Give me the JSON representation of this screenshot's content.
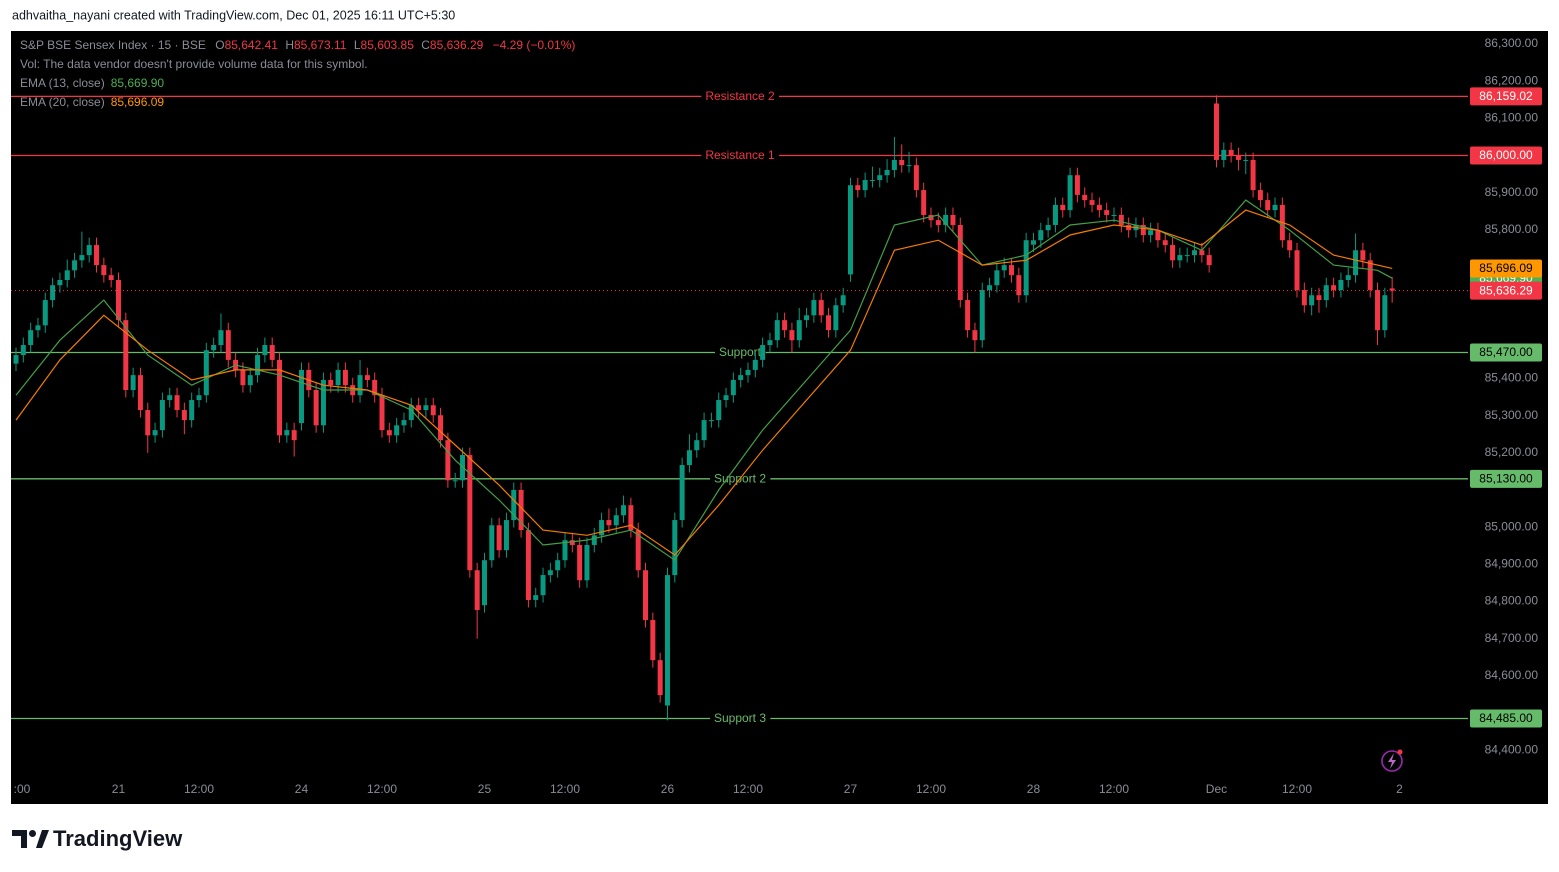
{
  "chart_data": {
    "type": "candlestick",
    "header": "adhvaitha_nayani created with TradingView.com, Dec 01, 2025 16:11 UTC+5:30",
    "symbol": "S&P BSE Sensex Index · 15 · BSE",
    "ohlc_letters": [
      "O",
      "H",
      "L",
      "C"
    ],
    "ohlc_labels": [
      "85,642.41",
      "85,673.11",
      "85,603.85",
      "85,636.29"
    ],
    "change": "−4.29 (−0.01%)",
    "volume_note": "Vol: The data vendor doesn't provide volume data for this symbol.",
    "brand": "TradingView",
    "up_color": "#089981",
    "down_color": "#f23645",
    "categories": [
      ":00",
      null,
      null,
      null,
      null,
      null,
      null,
      null,
      null,
      null,
      null,
      null,
      null,
      null,
      "21",
      null,
      null,
      null,
      null,
      null,
      null,
      null,
      null,
      null,
      null,
      "12:00",
      null,
      null,
      null,
      null,
      null,
      null,
      null,
      null,
      null,
      null,
      null,
      null,
      null,
      "24",
      null,
      null,
      null,
      null,
      null,
      null,
      null,
      null,
      null,
      null,
      "12:00",
      null,
      null,
      null,
      null,
      null,
      null,
      null,
      null,
      null,
      null,
      null,
      null,
      null,
      "25",
      null,
      null,
      null,
      null,
      null,
      null,
      null,
      null,
      null,
      null,
      "12:00",
      null,
      null,
      null,
      null,
      null,
      null,
      null,
      null,
      null,
      null,
      null,
      null,
      null,
      "26",
      null,
      null,
      null,
      null,
      null,
      null,
      null,
      null,
      null,
      null,
      "12:00",
      null,
      null,
      null,
      null,
      null,
      null,
      null,
      null,
      null,
      null,
      null,
      null,
      null,
      "27",
      null,
      null,
      null,
      null,
      null,
      null,
      null,
      null,
      null,
      null,
      "12:00",
      null,
      null,
      null,
      null,
      null,
      null,
      null,
      null,
      null,
      null,
      null,
      null,
      null,
      "28",
      null,
      null,
      null,
      null,
      null,
      null,
      null,
      null,
      null,
      null,
      "12:00",
      null,
      null,
      null,
      null,
      null,
      null,
      null,
      null,
      null,
      null,
      null,
      null,
      null,
      "Dec",
      null,
      null,
      null,
      null,
      null,
      null,
      null,
      null,
      null,
      null,
      "12:00",
      null,
      null,
      null,
      null,
      null,
      null,
      null,
      null,
      null,
      null,
      null,
      null,
      null
    ],
    "x_end_label": "2",
    "open": [
      85440,
      85463,
      85490,
      85530,
      85543,
      85611,
      85651,
      85665,
      85691,
      85718,
      85732,
      85759,
      85705,
      85678,
      85665,
      85557,
      85369,
      85409,
      85315,
      85247,
      85261,
      85342,
      85355,
      85315,
      85288,
      85342,
      85355,
      85476,
      85490,
      85530,
      85450,
      85423,
      85382,
      85409,
      85463,
      85490,
      85450,
      85247,
      85261,
      85280,
      85423,
      85369,
      85274,
      85396,
      85382,
      85423,
      85382,
      85355,
      85409,
      85396,
      85355,
      85261,
      85247,
      85274,
      85288,
      85328,
      85315,
      85328,
      85301,
      85234,
      85126,
      85126,
      85194,
      84884,
      84790,
      84911,
      85005,
      84938,
      85019,
      85100,
      84992,
      84804,
      84817,
      84871,
      84884,
      84911,
      84965,
      84952,
      84857,
      84952,
      84978,
      85019,
      85005,
      85032,
      85059,
      84992,
      84884,
      84750,
      84642,
      84520,
      84871,
      85019,
      85167,
      85207,
      85234,
      85288,
      85288,
      85342,
      85355,
      85396,
      85409,
      85423,
      85450,
      85490,
      85503,
      85557,
      85530,
      85503,
      85557,
      85570,
      85611,
      85570,
      85530,
      85597,
      85680,
      85920,
      85907,
      85934,
      85934,
      85947,
      85961,
      85988,
      85974,
      85974,
      85907,
      85840,
      85826,
      85813,
      85840,
      85813,
      85611,
      85530,
      85503,
      85638,
      85651,
      85691,
      85705,
      85678,
      85624,
      85760,
      85772,
      85799,
      85813,
      85867,
      85853,
      85947,
      85894,
      85880,
      85867,
      85853,
      85840,
      85840,
      85813,
      85799,
      85813,
      85786,
      85799,
      85772,
      85759,
      85718,
      85732,
      85732,
      85745,
      85732,
      86140,
      85988,
      86015,
      86001,
      85988,
      85988,
      85907,
      85880,
      85853,
      85867,
      85772,
      85745,
      85638,
      85597,
      85624,
      85611,
      85651,
      85638,
      85665,
      85678,
      85745,
      85718,
      85638,
      85530,
      85642.41
    ],
    "high": [
      85483,
      85510,
      85550,
      85563,
      85631,
      85671,
      85685,
      85720,
      85738,
      85795,
      85779,
      85779,
      85725,
      85698,
      85685,
      85577,
      85429,
      85429,
      85335,
      85281,
      85362,
      85375,
      85375,
      85335,
      85362,
      85375,
      85496,
      85510,
      85575,
      85550,
      85470,
      85443,
      85429,
      85483,
      85510,
      85510,
      85470,
      85281,
      85281,
      85443,
      85443,
      85389,
      85416,
      85416,
      85443,
      85443,
      85402,
      85450,
      85429,
      85416,
      85375,
      85281,
      85294,
      85308,
      85348,
      85348,
      85348,
      85348,
      85321,
      85254,
      85146,
      85214,
      85214,
      84904,
      84931,
      85025,
      85025,
      85039,
      85120,
      85120,
      85012,
      84837,
      84891,
      84904,
      84931,
      84985,
      84985,
      84972,
      84972,
      84998,
      85039,
      85050,
      85052,
      85085,
      85079,
      85012,
      84904,
      84770,
      84662,
      84891,
      85039,
      85187,
      85250,
      85254,
      85308,
      85308,
      85362,
      85375,
      85416,
      85429,
      85443,
      85470,
      85510,
      85523,
      85577,
      85577,
      85550,
      85590,
      85590,
      85631,
      85631,
      85590,
      85617,
      85644,
      85940,
      85940,
      85954,
      85970,
      85967,
      85990,
      86050,
      86030,
      86010,
      85994,
      85927,
      85860,
      85846,
      85860,
      85860,
      85833,
      85631,
      85550,
      85658,
      85671,
      85711,
      85725,
      85725,
      85698,
      85792,
      85792,
      85819,
      85833,
      85887,
      85887,
      85967,
      85967,
      85914,
      85900,
      85887,
      85873,
      85860,
      85860,
      85833,
      85833,
      85833,
      85819,
      85819,
      85792,
      85779,
      85752,
      85752,
      85765,
      85765,
      85752,
      86162,
      86035,
      86035,
      86021,
      86008,
      86008,
      85927,
      85900,
      85887,
      85887,
      85792,
      85765,
      85658,
      85644,
      85644,
      85671,
      85671,
      85685,
      85698,
      85790,
      85765,
      85738,
      85658,
      85644,
      85673.11
    ],
    "low": [
      85420,
      85443,
      85470,
      85510,
      85523,
      85591,
      85631,
      85645,
      85671,
      85698,
      85712,
      85685,
      85658,
      85645,
      85537,
      85349,
      85349,
      85295,
      85200,
      85227,
      85241,
      85322,
      85295,
      85250,
      85268,
      85322,
      85335,
      85456,
      85470,
      85430,
      85403,
      85362,
      85362,
      85389,
      85443,
      85430,
      85227,
      85227,
      85190,
      85260,
      85349,
      85254,
      85254,
      85362,
      85362,
      85362,
      85335,
      85335,
      85376,
      85335,
      85241,
      85227,
      85227,
      85254,
      85268,
      85295,
      85295,
      85281,
      85214,
      85106,
      85106,
      85106,
      84864,
      84700,
      84770,
      84891,
      84918,
      84918,
      84999,
      84972,
      84784,
      84784,
      84797,
      84851,
      84864,
      84891,
      84932,
      84837,
      84837,
      84932,
      84958,
      84985,
      84985,
      85012,
      84972,
      84864,
      84730,
      84622,
      84528,
      84480,
      84851,
      84999,
      85147,
      85187,
      85214,
      85268,
      85268,
      85322,
      85335,
      85376,
      85389,
      85403,
      85430,
      85470,
      85483,
      85510,
      85470,
      85483,
      85537,
      85550,
      85550,
      85510,
      85510,
      85577,
      85660,
      85887,
      85887,
      85914,
      85914,
      85927,
      85941,
      85954,
      85954,
      85887,
      85820,
      85806,
      85793,
      85793,
      85793,
      85591,
      85510,
      85470,
      85483,
      85618,
      85631,
      85671,
      85658,
      85604,
      85604,
      85740,
      85752,
      85779,
      85793,
      85833,
      85833,
      85874,
      85860,
      85847,
      85833,
      85820,
      85820,
      85793,
      85779,
      85779,
      85766,
      85766,
      85752,
      85739,
      85698,
      85698,
      85712,
      85712,
      85712,
      85685,
      85968,
      85968,
      85981,
      85960,
      85950,
      85887,
      85860,
      85833,
      85833,
      85752,
      85725,
      85618,
      85577,
      85570,
      85577,
      85591,
      85618,
      85618,
      85645,
      85658,
      85698,
      85618,
      85490,
      85510,
      85603.85
    ],
    "close": [
      85463,
      85490,
      85530,
      85543,
      85611,
      85651,
      85665,
      85691,
      85718,
      85732,
      85759,
      85705,
      85678,
      85665,
      85557,
      85369,
      85409,
      85315,
      85247,
      85261,
      85342,
      85355,
      85315,
      85288,
      85342,
      85355,
      85476,
      85490,
      85530,
      85450,
      85423,
      85382,
      85409,
      85463,
      85490,
      85450,
      85247,
      85261,
      85234,
      85423,
      85369,
      85274,
      85396,
      85382,
      85423,
      85382,
      85355,
      85409,
      85396,
      85355,
      85261,
      85247,
      85274,
      85288,
      85328,
      85315,
      85328,
      85301,
      85234,
      85126,
      85126,
      85194,
      84884,
      84777,
      84911,
      85005,
      84938,
      85019,
      85100,
      84992,
      84804,
      84817,
      84871,
      84884,
      84911,
      84965,
      84952,
      84857,
      84952,
      84978,
      85019,
      85005,
      85032,
      85059,
      84992,
      84884,
      84750,
      84642,
      84548,
      84871,
      85019,
      85167,
      85207,
      85234,
      85288,
      85288,
      85342,
      85355,
      85396,
      85409,
      85423,
      85450,
      85490,
      85503,
      85557,
      85530,
      85503,
      85557,
      85570,
      85611,
      85570,
      85530,
      85597,
      85624,
      85920,
      85907,
      85934,
      85934,
      85947,
      85961,
      85988,
      85974,
      85974,
      85907,
      85840,
      85826,
      85813,
      85840,
      85813,
      85611,
      85530,
      85503,
      85638,
      85651,
      85691,
      85705,
      85678,
      85624,
      85772,
      85772,
      85799,
      85813,
      85867,
      85853,
      85947,
      85894,
      85880,
      85867,
      85853,
      85840,
      85840,
      85813,
      85799,
      85813,
      85786,
      85799,
      85772,
      85759,
      85718,
      85732,
      85732,
      85745,
      85732,
      85705,
      85988,
      86015,
      86001,
      85988,
      85988,
      85907,
      85880,
      85853,
      85867,
      85772,
      85745,
      85638,
      85597,
      85624,
      85611,
      85651,
      85638,
      85665,
      85678,
      85745,
      85718,
      85638,
      85530,
      85624,
      85636.29
    ],
    "last_label": "85,636.29",
    "series": [
      {
        "name": "EMA (13, close)",
        "color": "#43a047",
        "tag_color": "#4caf50",
        "text_color": "#ffffff",
        "value_label": "85,669.90",
        "x": [
          0,
          6,
          12,
          18,
          24,
          30,
          36,
          42,
          48,
          54,
          60,
          66,
          72,
          78,
          84,
          90,
          96,
          102,
          108,
          114,
          120,
          126,
          132,
          138,
          144,
          150,
          156,
          162,
          168,
          174,
          180,
          186,
          188
        ],
        "values": [
          85355,
          85503,
          85611,
          85463,
          85382,
          85436,
          85409,
          85369,
          85369,
          85315,
          85180,
          85073,
          84952,
          84965,
          84992,
          84911,
          85100,
          85261,
          85396,
          85530,
          85813,
          85840,
          85705,
          85732,
          85813,
          85826,
          85799,
          85745,
          85880,
          85799,
          85705,
          85691,
          85669.9
        ]
      },
      {
        "name": "EMA (20, close)",
        "color": "#f57c00",
        "tag_color": "#ff9800",
        "text_color": "#000000",
        "value_label": "85,696.09",
        "x": [
          0,
          6,
          12,
          18,
          24,
          30,
          36,
          42,
          48,
          54,
          60,
          66,
          72,
          78,
          84,
          90,
          96,
          102,
          108,
          114,
          120,
          126,
          132,
          138,
          144,
          150,
          156,
          162,
          168,
          174,
          180,
          186,
          188
        ],
        "values": [
          85288,
          85450,
          85570,
          85476,
          85396,
          85423,
          85423,
          85382,
          85369,
          85328,
          85221,
          85113,
          84992,
          84978,
          85005,
          84925,
          85059,
          85207,
          85342,
          85476,
          85745,
          85772,
          85705,
          85718,
          85786,
          85813,
          85799,
          85759,
          85853,
          85813,
          85732,
          85705,
          85696.09
        ]
      }
    ],
    "levels": [
      {
        "name": "Resistance 2",
        "value": 86159.02,
        "value_label": "86,159.02",
        "color": "#f23645",
        "text_color": "#ffffff"
      },
      {
        "name": "Resistance 1",
        "value": 86000.0,
        "value_label": "86,000.00",
        "color": "#f23645",
        "text_color": "#ffffff"
      },
      {
        "name": "Support",
        "value": 85470.0,
        "value_label": "85,470.00",
        "color": "#66bb6a",
        "text_color": "#000000"
      },
      {
        "name": "Support 2",
        "value": 85130.0,
        "value_label": "85,130.00",
        "color": "#66bb6a",
        "text_color": "#000000"
      },
      {
        "name": "Support 3",
        "value": 84485.0,
        "value_label": "84,485.00",
        "color": "#66bb6a",
        "text_color": "#000000"
      }
    ],
    "ylim": [
      84255,
      86335
    ],
    "yticks": [
      {
        "value": 86300,
        "label": "86,300.00"
      },
      {
        "value": 86200,
        "label": "86,200.00"
      },
      {
        "value": 86100,
        "label": "86,100.00"
      },
      {
        "value": 85900,
        "label": "85,900.00"
      },
      {
        "value": 85800,
        "label": "85,800.00"
      },
      {
        "value": 85400,
        "label": "85,400.00"
      },
      {
        "value": 85300,
        "label": "85,300.00"
      },
      {
        "value": 85200,
        "label": "85,200.00"
      },
      {
        "value": 85000,
        "label": "85,000.00"
      },
      {
        "value": 84900,
        "label": "84,900.00"
      },
      {
        "value": 84800,
        "label": "84,800.00"
      },
      {
        "value": 84700,
        "label": "84,700.00"
      },
      {
        "value": 84600,
        "label": "84,600.00"
      },
      {
        "value": 84400,
        "label": "84,400.00"
      }
    ]
  }
}
